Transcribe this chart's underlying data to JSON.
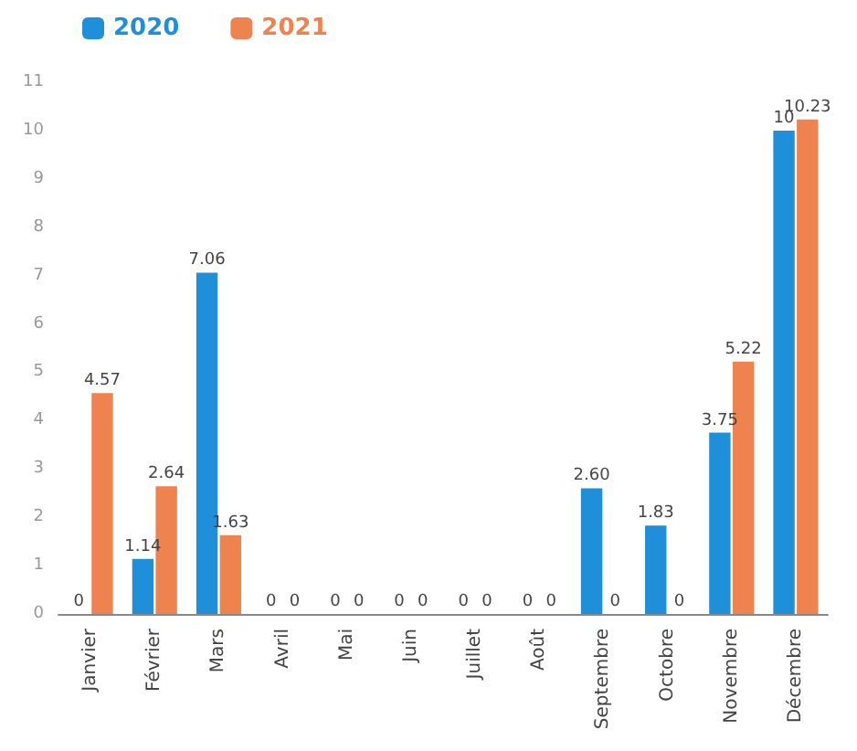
{
  "chart_data": {
    "type": "bar",
    "categories": [
      "Janvier",
      "Février",
      "Mars",
      "Avril",
      "Mai",
      "Juin",
      "Juillet",
      "Août",
      "Septembre",
      "Octobre",
      "Novembre",
      "Décembre"
    ],
    "series": [
      {
        "name": "2020",
        "color": "#1e8fd8",
        "values": [
          0,
          1.14,
          7.06,
          0,
          0,
          0,
          0,
          0,
          2.6,
          1.83,
          3.75,
          10
        ],
        "value_labels": [
          "0",
          "1.14",
          "7.06",
          "0",
          "0",
          "0",
          "0",
          "0",
          "2.60",
          "1.83",
          "3.75",
          "10"
        ]
      },
      {
        "name": "2021",
        "color": "#ee8350",
        "values": [
          4.57,
          2.64,
          1.63,
          0,
          0,
          0,
          0,
          0,
          0,
          0,
          5.22,
          10.23
        ],
        "value_labels": [
          "4.57",
          "2.64",
          "1.63",
          "0",
          "0",
          "0",
          "0",
          "0",
          "0",
          "0",
          "5.22",
          "10.23"
        ]
      }
    ],
    "ylim": [
      0,
      11
    ],
    "yticks": [
      0,
      1,
      2,
      3,
      4,
      5,
      6,
      7,
      8,
      9,
      10,
      11
    ],
    "grid": false,
    "legend": "top left"
  }
}
